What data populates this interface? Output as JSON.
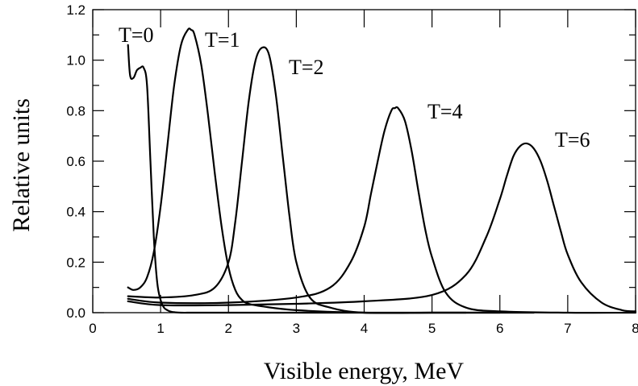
{
  "chart_data": {
    "type": "line",
    "xlabel": "Visible energy, MeV",
    "ylabel": "Relative units",
    "xlim": [
      0,
      8
    ],
    "ylim": [
      0,
      1.2
    ],
    "x_ticks": [
      0,
      1,
      2,
      3,
      4,
      5,
      6,
      7,
      8
    ],
    "x_tick_labels": [
      "0",
      "1",
      "2",
      "3",
      "4",
      "5",
      "6",
      "7",
      "8"
    ],
    "y_ticks": [
      0.0,
      0.2,
      0.4,
      0.6,
      0.8,
      1.0,
      1.2
    ],
    "y_tick_labels": [
      "0.0",
      "0.2",
      "0.4",
      "0.6",
      "0.8",
      "1.0",
      "1.2"
    ],
    "grid": false,
    "legend": "none",
    "series": [
      {
        "name": "T=0",
        "x": [
          0.52,
          0.55,
          0.6,
          0.65,
          0.7,
          0.75,
          0.8,
          0.85,
          0.9,
          0.95,
          1.0,
          1.05,
          1.1,
          1.15,
          1.2,
          1.3,
          1.5,
          2.0,
          3.0,
          4.0,
          5.0,
          5.5
        ],
        "y": [
          1.06,
          0.94,
          0.93,
          0.96,
          0.97,
          0.97,
          0.9,
          0.6,
          0.3,
          0.12,
          0.05,
          0.02,
          0.01,
          0.004,
          0.002,
          0.0,
          0.0,
          0.0,
          0.0,
          0.0,
          0.0,
          0.0
        ]
      },
      {
        "name": "T=1",
        "x": [
          0.52,
          0.6,
          0.7,
          0.8,
          0.9,
          1.0,
          1.1,
          1.2,
          1.3,
          1.4,
          1.45,
          1.5,
          1.6,
          1.7,
          1.8,
          1.9,
          2.0,
          2.1,
          2.2,
          2.3,
          2.5,
          3.0,
          4.0,
          5.0,
          6.0
        ],
        "y": [
          0.1,
          0.09,
          0.1,
          0.14,
          0.24,
          0.42,
          0.66,
          0.9,
          1.06,
          1.12,
          1.12,
          1.1,
          0.98,
          0.78,
          0.55,
          0.34,
          0.18,
          0.09,
          0.05,
          0.035,
          0.025,
          0.01,
          0.0,
          0.0,
          0.0
        ]
      },
      {
        "name": "T=2",
        "x": [
          0.52,
          1.0,
          1.5,
          1.8,
          2.0,
          2.1,
          2.2,
          2.3,
          2.4,
          2.5,
          2.6,
          2.7,
          2.8,
          2.9,
          3.0,
          3.2,
          3.5,
          4.0,
          5.0,
          6.0,
          6.5
        ],
        "y": [
          0.065,
          0.06,
          0.07,
          0.1,
          0.2,
          0.36,
          0.6,
          0.84,
          1.0,
          1.05,
          1.02,
          0.86,
          0.62,
          0.38,
          0.2,
          0.06,
          0.02,
          0.0,
          0.0,
          0.0,
          0.0
        ]
      },
      {
        "name": "T=4",
        "x": [
          0.52,
          1.0,
          2.0,
          3.0,
          3.5,
          3.8,
          4.0,
          4.1,
          4.2,
          4.3,
          4.4,
          4.45,
          4.5,
          4.6,
          4.7,
          4.8,
          4.9,
          5.0,
          5.2,
          5.5,
          6.0,
          7.0,
          8.0
        ],
        "y": [
          0.055,
          0.04,
          0.04,
          0.06,
          0.1,
          0.2,
          0.34,
          0.47,
          0.6,
          0.72,
          0.8,
          0.81,
          0.81,
          0.76,
          0.64,
          0.48,
          0.33,
          0.22,
          0.08,
          0.02,
          0.005,
          0.0,
          0.0
        ]
      },
      {
        "name": "T=6",
        "x": [
          0.52,
          1.0,
          2.0,
          3.0,
          4.0,
          5.0,
          5.5,
          5.8,
          6.0,
          6.1,
          6.2,
          6.3,
          6.4,
          6.5,
          6.6,
          6.7,
          6.8,
          6.9,
          7.0,
          7.2,
          7.5,
          7.8,
          8.0
        ],
        "y": [
          0.045,
          0.03,
          0.03,
          0.035,
          0.045,
          0.07,
          0.15,
          0.3,
          0.45,
          0.54,
          0.62,
          0.66,
          0.67,
          0.65,
          0.6,
          0.52,
          0.42,
          0.32,
          0.23,
          0.12,
          0.04,
          0.01,
          0.005
        ]
      }
    ]
  }
}
